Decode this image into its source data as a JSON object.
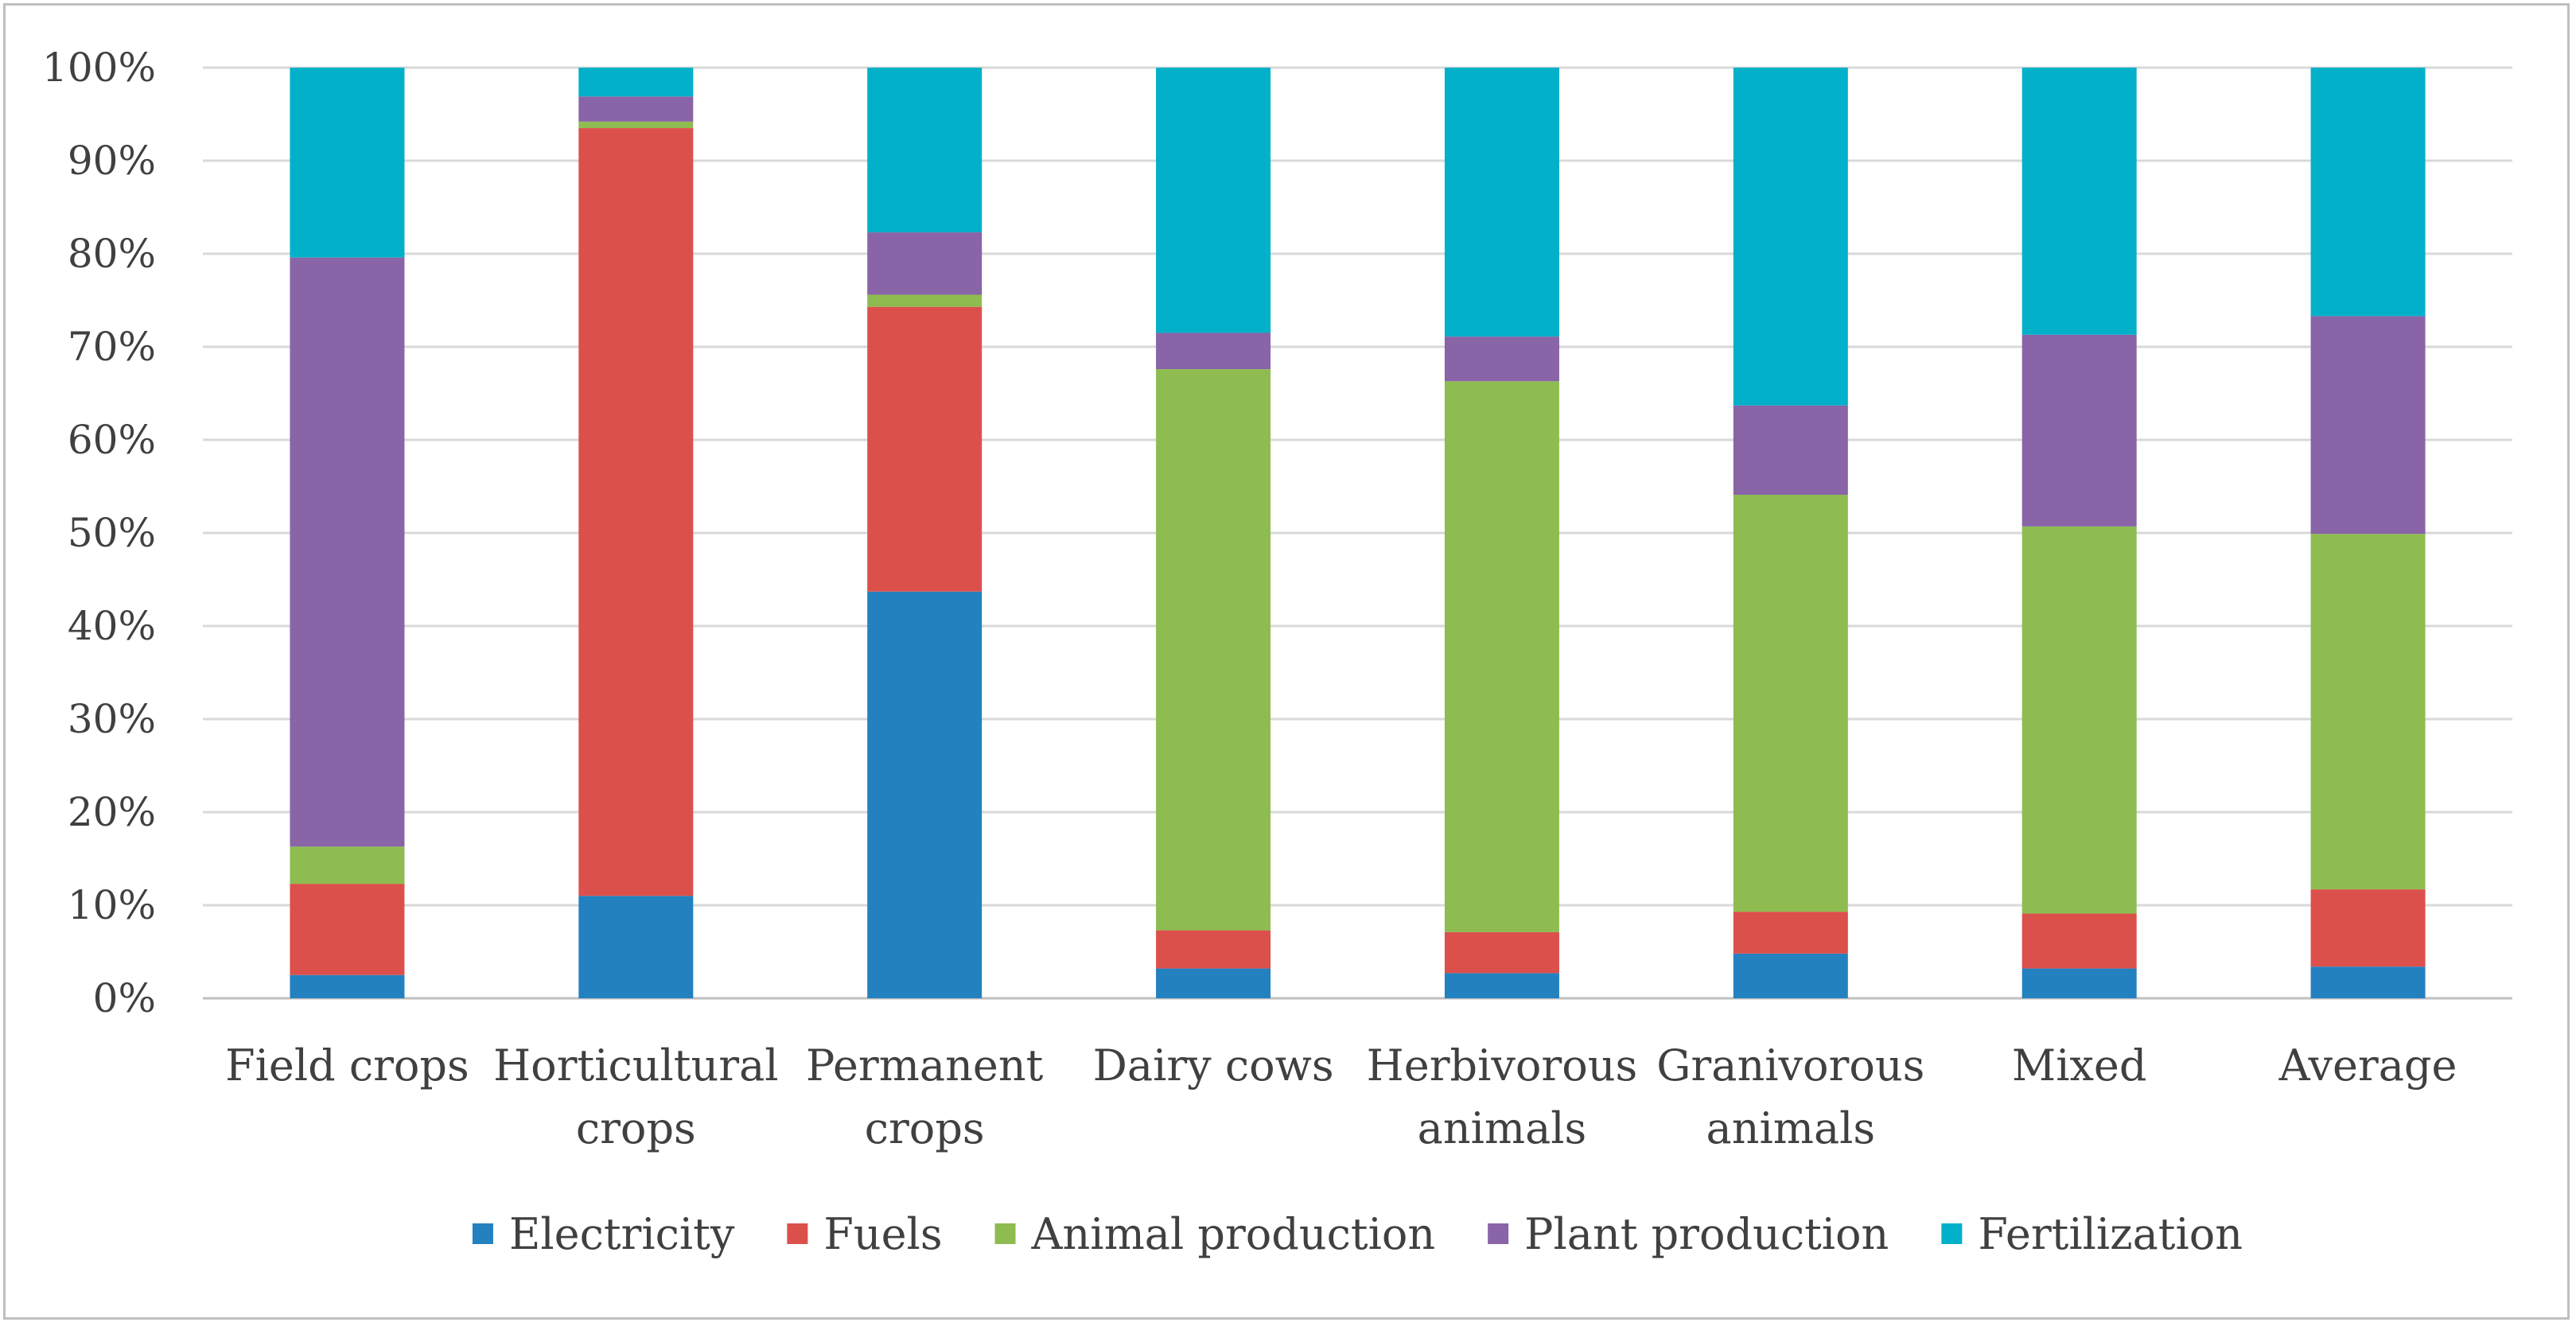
{
  "chart_data": {
    "type": "stacked-bar-100",
    "title": "",
    "xlabel": "",
    "ylabel": "",
    "ylim": [
      0,
      100
    ],
    "y_ticks": [
      "0%",
      "10%",
      "20%",
      "30%",
      "40%",
      "50%",
      "60%",
      "70%",
      "80%",
      "90%",
      "100%"
    ],
    "grid": true,
    "legend_position": "bottom",
    "categories": [
      [
        "Field crops"
      ],
      [
        "Horticultural",
        "crops"
      ],
      [
        "Permanent",
        "crops"
      ],
      [
        "Dairy cows"
      ],
      [
        "Herbivorous",
        "animals"
      ],
      [
        "Granivorous",
        "animals"
      ],
      [
        "Mixed"
      ],
      [
        "Average"
      ]
    ],
    "series": [
      {
        "name": "Electricity",
        "color": "#2381c0",
        "values": [
          2.5,
          11,
          43.7,
          3.2,
          2.7,
          4.8,
          3.2,
          3.4
        ]
      },
      {
        "name": "Fuels",
        "color": "#dc504c",
        "values": [
          9.8,
          82.5,
          30.6,
          4.1,
          4.4,
          4.5,
          5.9,
          8.3
        ]
      },
      {
        "name": "Animal production",
        "color": "#8ebc51",
        "values": [
          4.0,
          0.7,
          1.3,
          60.3,
          59.2,
          44.8,
          41.6,
          38.2
        ]
      },
      {
        "name": "Plant production",
        "color": "#8964a7",
        "values": [
          63.3,
          2.7,
          6.7,
          3.9,
          4.8,
          9.6,
          20.6,
          23.4
        ]
      },
      {
        "name": "Fertilization",
        "color": "#02b0c9",
        "values": [
          20.4,
          3.1,
          17.7,
          28.5,
          28.9,
          36.3,
          28.7,
          26.7
        ]
      }
    ]
  }
}
